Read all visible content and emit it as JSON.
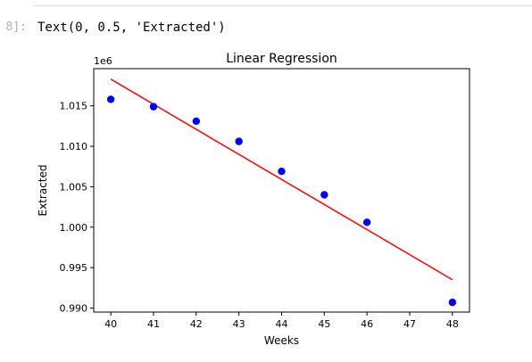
{
  "cell": {
    "prompt": "8]:",
    "output_text": "Text(0, 0.5, 'Extracted')"
  },
  "colors": {
    "points": "#0000ff",
    "fit_line": "#ff0000",
    "axes": "#000000"
  },
  "chart_data": {
    "type": "scatter",
    "title": "Linear Regression",
    "xlabel": "Weeks",
    "ylabel": "Extracted",
    "offset_label": "1e6",
    "xlim": [
      39.6,
      48.4
    ],
    "ylim": [
      0.9895,
      1.0196
    ],
    "xticks": [
      40,
      41,
      42,
      43,
      44,
      45,
      46,
      47,
      48
    ],
    "xtick_labels": [
      "40",
      "41",
      "42",
      "43",
      "44",
      "45",
      "46",
      "47",
      "48"
    ],
    "yticks": [
      0.99,
      0.995,
      1.0,
      1.005,
      1.01,
      1.015
    ],
    "ytick_labels": [
      "0.990",
      "0.995",
      "1.000",
      "1.005",
      "1.010",
      "1.015"
    ],
    "series": [
      {
        "kind": "scatter",
        "x": [
          40,
          41,
          42,
          43,
          44,
          45,
          46,
          48
        ],
        "y": [
          1.0158,
          1.0149,
          1.0131,
          1.0106,
          1.0069,
          1.004,
          1.0006,
          0.9907
        ]
      },
      {
        "kind": "line",
        "x": [
          40,
          48
        ],
        "y": [
          1.0183,
          0.9935
        ]
      }
    ],
    "grid": false
  }
}
